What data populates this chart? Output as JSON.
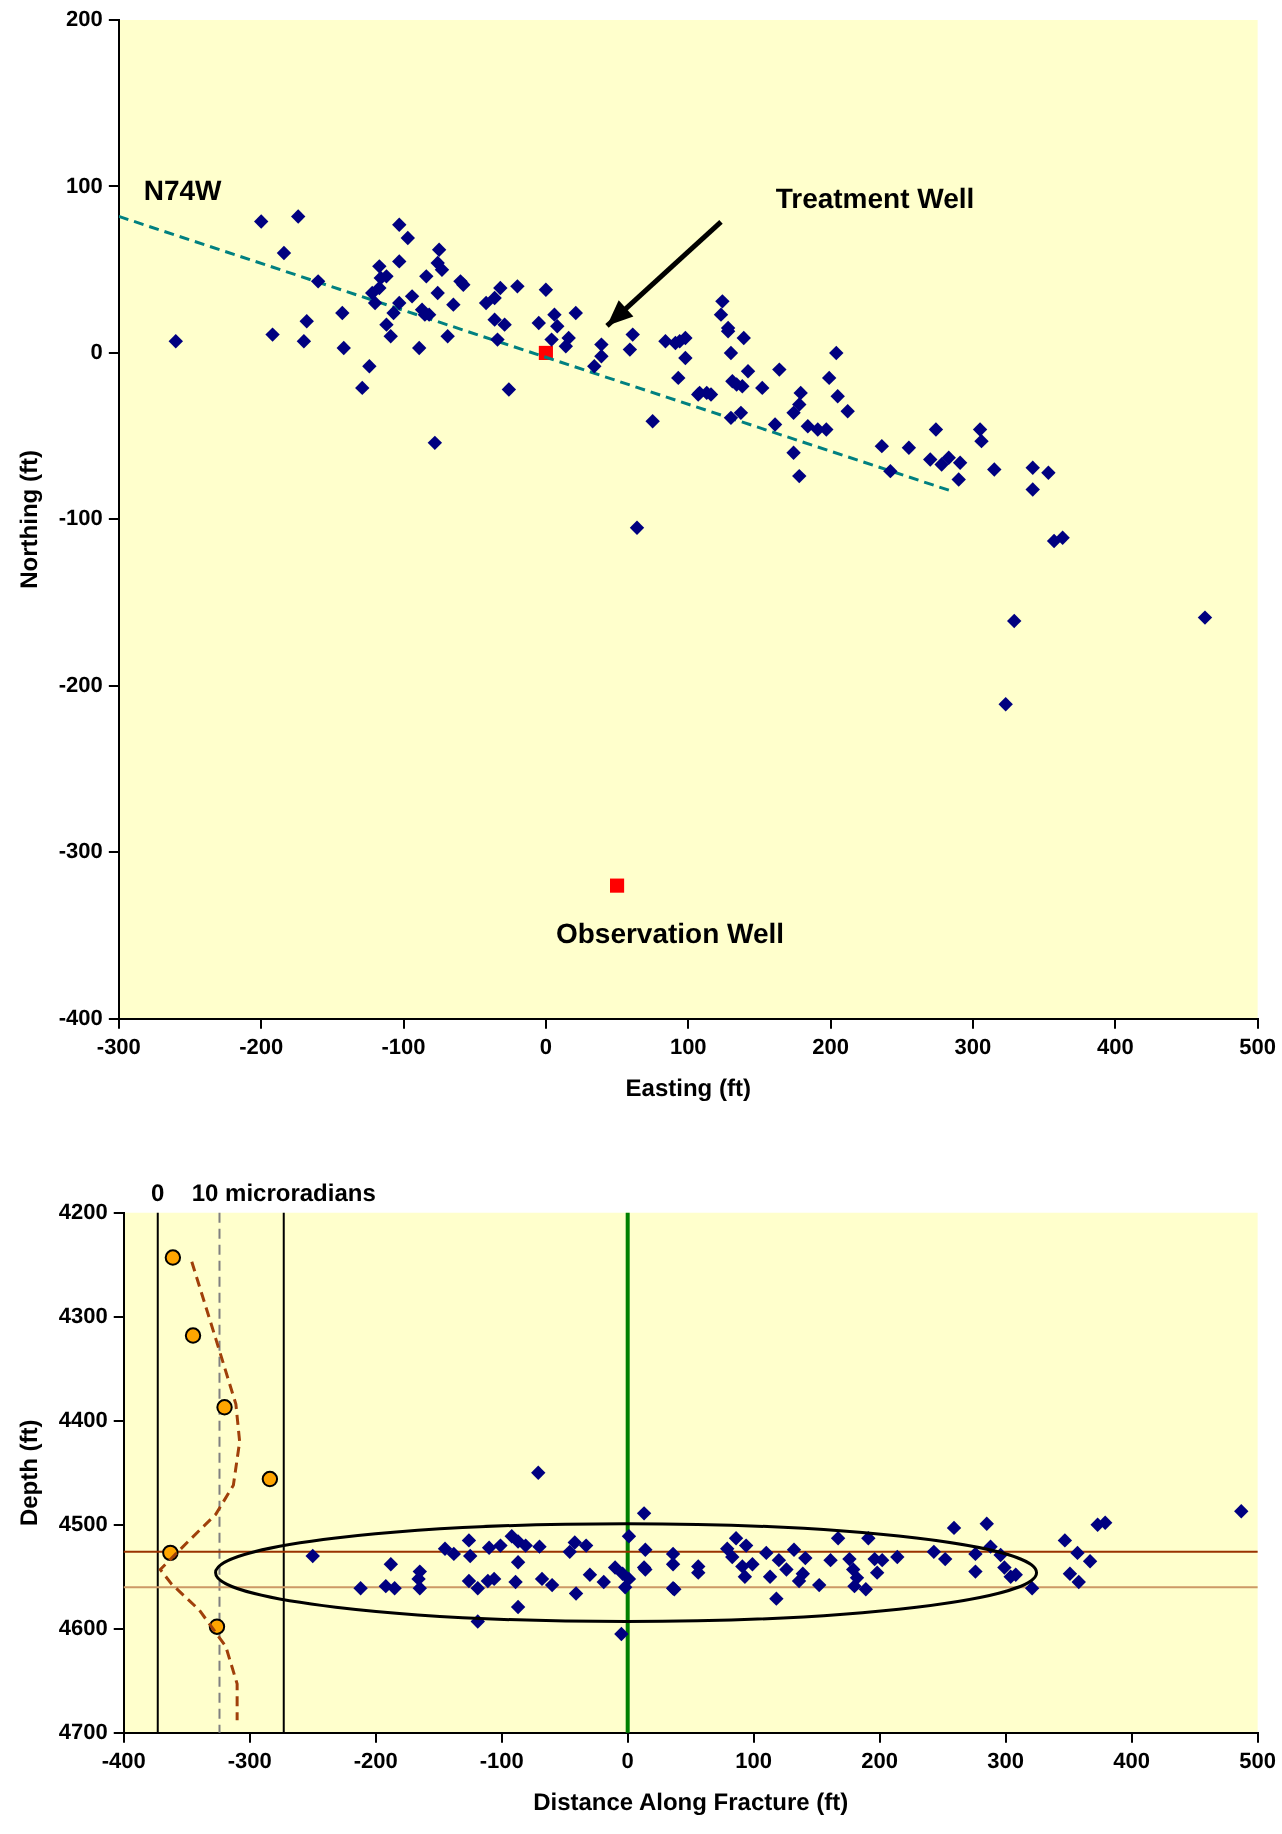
{
  "chart_data": [
    {
      "type": "scatter",
      "xlabel": "Easting (ft)",
      "ylabel": "Northing (ft)",
      "xlim": [
        -300,
        500
      ],
      "xticks": [
        -300,
        -200,
        -100,
        0,
        100,
        200,
        300,
        400,
        500
      ],
      "ylim": [
        -400,
        200
      ],
      "yticks": [
        -400,
        -300,
        -200,
        -100,
        0,
        100,
        200
      ],
      "grid": false,
      "legend": false,
      "annotations": [
        "N74W",
        "Treatment Well",
        "Observation Well"
      ],
      "series": [
        {
          "type": "scatter",
          "color": "#000080",
          "marker": "diamond",
          "x": [
            -260,
            -200,
            -174,
            -184,
            -192,
            -170,
            -168,
            -160,
            -143,
            -142,
            -129,
            -124,
            -122,
            -120,
            -117,
            -116,
            -112,
            -117,
            -112,
            -109,
            -107,
            -103,
            -97,
            -103,
            -103,
            -94,
            -89,
            -87,
            -85,
            -82,
            -84,
            -78,
            -75,
            -76,
            -73,
            -76,
            -69,
            -65,
            -60,
            -58,
            -42,
            -36,
            -32,
            -20,
            -36,
            -29,
            -34,
            -26,
            0,
            -5,
            6,
            8,
            4,
            21,
            16,
            14,
            39,
            39,
            34,
            61,
            59,
            75,
            84,
            98,
            94,
            98,
            93,
            108,
            64,
            91,
            107,
            113,
            116,
            124,
            123,
            128,
            128,
            139,
            130,
            131,
            134,
            138,
            142,
            130,
            137,
            152,
            164,
            161,
            174,
            179,
            178,
            174,
            178,
            184,
            191,
            197,
            204,
            199,
            205,
            212,
            236,
            242,
            255,
            270,
            274,
            278,
            283,
            291,
            290,
            305,
            306,
            315,
            342,
            353,
            342,
            357,
            363,
            329,
            323,
            463
          ],
          "values": [
            7,
            79,
            82,
            60,
            11,
            7,
            19,
            43,
            24,
            3,
            -21,
            -8,
            36,
            30,
            52,
            45,
            46,
            39,
            17,
            10,
            24,
            77,
            69,
            55,
            30,
            34,
            3,
            26,
            23,
            23,
            46,
            -54,
            62,
            54,
            50,
            36,
            10,
            29,
            43,
            41,
            30,
            33,
            39,
            40,
            20,
            17,
            8,
            -22,
            38,
            18,
            23,
            16,
            8,
            24,
            9,
            4,
            5,
            -2,
            -8,
            11,
            2,
            -41,
            7,
            9,
            7,
            -3,
            -15,
            -24,
            -105,
            6,
            -25,
            -24,
            -25,
            31,
            23,
            15,
            13,
            9,
            0,
            -17,
            -19,
            -20,
            -11,
            -39,
            -36,
            -21,
            -10,
            -43,
            -36,
            -24,
            -31,
            -60,
            -74,
            -44,
            -46,
            -46,
            0,
            -15,
            -26,
            -35,
            -56,
            -71,
            -57,
            -64,
            -46,
            -67,
            -63,
            -66,
            -76,
            -46,
            -53,
            -70,
            -69,
            -72,
            -82,
            -113,
            -111,
            -161,
            -211,
            -159
          ]
        },
        {
          "type": "line",
          "color": "#008080",
          "marker": "none",
          "line_style": "dashed",
          "x": [
            -300,
            285
          ],
          "values": [
            82,
            -83
          ]
        },
        {
          "type": "scatter",
          "color": "#ff0000",
          "marker": "square",
          "x": [
            0
          ],
          "values": [
            0
          ]
        },
        {
          "type": "scatter",
          "color": "#ff0000",
          "marker": "square",
          "x": [
            50
          ],
          "values": [
            -320
          ]
        }
      ]
    },
    {
      "type": "scatter",
      "xlabel": "Distance Along Fracture (ft)",
      "ylabel": "Depth (ft)",
      "xlim": [
        -400,
        500
      ],
      "xticks": [
        -400,
        -300,
        -200,
        -100,
        0,
        100,
        200,
        300,
        400,
        500
      ],
      "ylim": [
        4700,
        4200
      ],
      "yticks": [
        4200,
        4300,
        4400,
        4500,
        4600,
        4700
      ],
      "grid": false,
      "legend": false,
      "x2lim": [
        -2.7,
        87.3
      ],
      "x2ticks": [
        0,
        {
          "value": 10,
          "label": "10 microradians"
        }
      ],
      "ref_lines": [
        {
          "axis": "x",
          "value": -373,
          "color": "#000000"
        },
        {
          "axis": "x",
          "value": -324,
          "color": "#808080",
          "line_style": "dashed"
        },
        {
          "axis": "x",
          "value": -273,
          "color": "#000000"
        },
        {
          "axis": "x",
          "value": 0,
          "color": "#008000"
        },
        {
          "axis": "y",
          "value": 4526,
          "color": "#993300"
        },
        {
          "axis": "y",
          "value": 4560,
          "color": "#cc9966"
        }
      ],
      "series": [
        {
          "type": "scatter",
          "color": "#000080",
          "marker": "diamond",
          "x": [
            -250,
            -212,
            -188,
            -192,
            -185,
            -165,
            -165,
            -166,
            -145,
            -138,
            -126,
            -125,
            -126,
            -119,
            -111,
            -106,
            -119,
            -110,
            -101,
            -92,
            -87,
            -81,
            -87,
            -89,
            -87,
            -70,
            -71,
            -68,
            -60,
            -46,
            -42,
            -33,
            -41,
            -30,
            -19,
            -10,
            -4,
            -2,
            1,
            1,
            13,
            -5,
            14,
            13,
            36,
            36,
            36,
            56,
            14,
            37,
            56,
            79,
            86,
            94,
            83,
            91,
            93,
            99,
            110,
            113,
            118,
            120,
            126,
            132,
            136,
            141,
            139,
            152,
            161,
            167,
            176,
            179,
            180,
            182,
            189,
            191,
            196,
            202,
            198,
            214,
            243,
            252,
            259,
            276,
            276,
            285,
            288,
            296,
            299,
            304,
            308,
            321,
            347,
            351,
            357,
            358,
            367,
            373,
            379,
            487
          ],
          "values": [
            4530,
            4561,
            4538,
            4559,
            4561,
            4545,
            4561,
            4552,
            4523,
            4528,
            4515,
            4530,
            4554,
            4561,
            4554,
            4552,
            4593,
            4522,
            4520,
            4511,
            4516,
            4520,
            4536,
            4555,
            4579,
            4521,
            4450,
            4552,
            4558,
            4526,
            4517,
            4520,
            4566,
            4548,
            4555,
            4541,
            4547,
            4560,
            4552,
            4511,
            4489,
            4605,
            4524,
            4541,
            4528,
            4538,
            4561,
            4540,
            4543,
            4562,
            4546,
            4523,
            4513,
            4520,
            4531,
            4540,
            4550,
            4538,
            4527,
            4550,
            4571,
            4534,
            4543,
            4524,
            4554,
            4532,
            4547,
            4558,
            4534,
            4513,
            4533,
            4543,
            4559,
            4551,
            4562,
            4513,
            4533,
            4534,
            4546,
            4531,
            4526,
            4533,
            4503,
            4528,
            4545,
            4499,
            4521,
            4529,
            4541,
            4550,
            4548,
            4561,
            4515,
            4547,
            4527,
            4555,
            4535,
            4500,
            4498,
            4487
          ]
        },
        {
          "type": "line",
          "color": "#a0400a",
          "marker": "none",
          "line_style": "dashed",
          "x": [
            -346,
            -327,
            -311,
            -308,
            -313,
            -327,
            -348,
            -371,
            -362,
            -340,
            -319,
            -310,
            -310
          ],
          "values": [
            4247,
            4321,
            4384,
            4420,
            4462,
            4490,
            4515,
            4543,
            4557,
            4582,
            4617,
            4653,
            4688
          ]
        },
        {
          "type": "scatter",
          "color": "#ffa500",
          "marker": "circle",
          "x": [
            -361,
            -345,
            -320,
            -284,
            -363,
            -326
          ],
          "values": [
            4243,
            4318,
            4387,
            4456,
            4527,
            4598
          ]
        }
      ]
    }
  ]
}
